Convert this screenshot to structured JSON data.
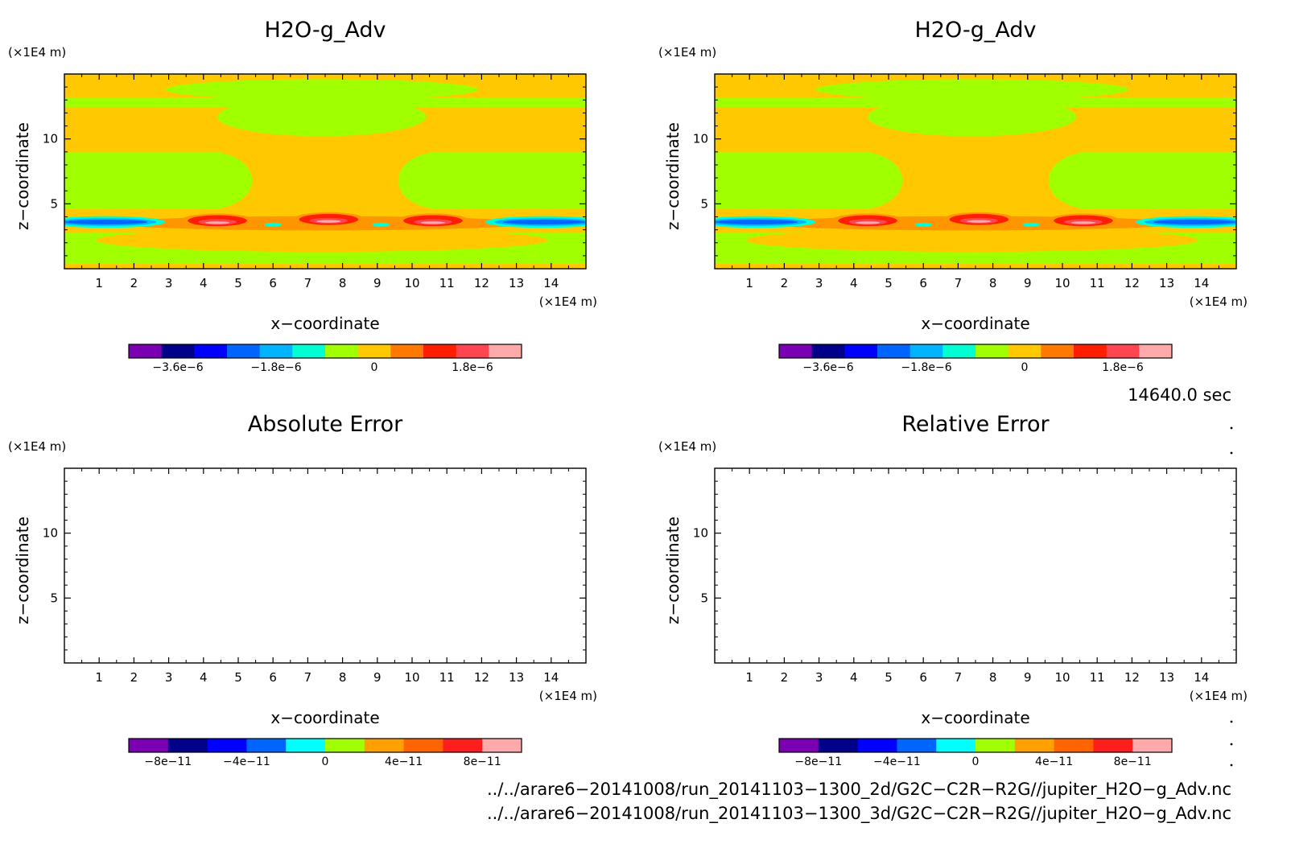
{
  "chart_data": [
    {
      "type": "heatmap",
      "title": "H2O-g_Adv",
      "xlabel": "x−coordinate",
      "ylabel": "z−coordinate",
      "x_unit": "(×1E4 m)",
      "y_unit": "(×1E4 m)",
      "xlim": [
        0,
        15
      ],
      "ylim": [
        0,
        15
      ],
      "x_ticks": [
        "1",
        "2",
        "3",
        "4",
        "5",
        "6",
        "7",
        "8",
        "9",
        "10",
        "11",
        "12",
        "13",
        "14"
      ],
      "y_ticks": [
        "5",
        "10"
      ],
      "colorbar": {
        "colors": [
          "#7b00b4",
          "#00008b",
          "#0000ff",
          "#0064ff",
          "#00b4ff",
          "#00ffd2",
          "#a0ff00",
          "#ffc800",
          "#ff7800",
          "#ff1e00",
          "#ff4650",
          "#ffaaaa"
        ],
        "tick_labels": [
          "−3.6e−6",
          "−1.8e−6",
          "0",
          "1.8e−6"
        ],
        "tick_values": [
          -3.6e-06,
          -1.8e-06,
          0,
          1.8e-06
        ],
        "range": [
          -4.5e-06,
          2.7e-06
        ]
      },
      "field": "filled contours of H2O-g advection tendency"
    },
    {
      "type": "heatmap",
      "title": "H2O-g_Adv",
      "xlabel": "x−coordinate",
      "ylabel": "z−coordinate",
      "x_unit": "(×1E4 m)",
      "y_unit": "(×1E4 m)",
      "xlim": [
        0,
        15
      ],
      "ylim": [
        0,
        15
      ],
      "x_ticks": [
        "1",
        "2",
        "3",
        "4",
        "5",
        "6",
        "7",
        "8",
        "9",
        "10",
        "11",
        "12",
        "13",
        "14"
      ],
      "y_ticks": [
        "5",
        "10"
      ],
      "colorbar": {
        "colors": [
          "#7b00b4",
          "#00008b",
          "#0000ff",
          "#0064ff",
          "#00b4ff",
          "#00ffd2",
          "#a0ff00",
          "#ffc800",
          "#ff7800",
          "#ff1e00",
          "#ff4650",
          "#ffaaaa"
        ],
        "tick_labels": [
          "−3.6e−6",
          "−1.8e−6",
          "0",
          "1.8e−6"
        ],
        "tick_values": [
          -3.6e-06,
          -1.8e-06,
          0,
          1.8e-06
        ],
        "range": [
          -4.5e-06,
          2.7e-06
        ]
      },
      "field": "filled contours of H2O-g advection tendency"
    },
    {
      "type": "heatmap",
      "title": "Absolute Error",
      "xlabel": "x−coordinate",
      "ylabel": "z−coordinate",
      "x_unit": "(×1E4 m)",
      "y_unit": "(×1E4 m)",
      "xlim": [
        0,
        15
      ],
      "ylim": [
        0,
        15
      ],
      "x_ticks": [
        "1",
        "2",
        "3",
        "4",
        "5",
        "6",
        "7",
        "8",
        "9",
        "10",
        "11",
        "12",
        "13",
        "14"
      ],
      "y_ticks": [
        "5",
        "10"
      ],
      "colorbar": {
        "colors": [
          "#7b00b4",
          "#00008b",
          "#0000ff",
          "#0064ff",
          "#00ffff",
          "#a0ff00",
          "#ffa000",
          "#ff6400",
          "#ff1e1e",
          "#ffaaaa"
        ],
        "tick_labels": [
          "−8e−11",
          "−4e−11",
          "0",
          "4e−11",
          "8e−11"
        ],
        "tick_values": [
          -8e-11,
          -4e-11,
          0,
          4e-11,
          8e-11
        ],
        "range": [
          -1e-10,
          1e-10
        ]
      },
      "field": "empty (zero error)"
    },
    {
      "type": "heatmap",
      "title": "Relative Error",
      "xlabel": "x−coordinate",
      "ylabel": "z−coordinate",
      "x_unit": "(×1E4 m)",
      "y_unit": "(×1E4 m)",
      "xlim": [
        0,
        15
      ],
      "ylim": [
        0,
        15
      ],
      "x_ticks": [
        "1",
        "2",
        "3",
        "4",
        "5",
        "6",
        "7",
        "8",
        "9",
        "10",
        "11",
        "12",
        "13",
        "14"
      ],
      "y_ticks": [
        "5",
        "10"
      ],
      "colorbar": {
        "colors": [
          "#7b00b4",
          "#00008b",
          "#0000ff",
          "#0064ff",
          "#00ffff",
          "#a0ff00",
          "#ffa000",
          "#ff6400",
          "#ff1e1e",
          "#ffaaaa"
        ],
        "tick_labels": [
          "−8e−11",
          "−4e−11",
          "0",
          "4e−11",
          "8e−11"
        ],
        "tick_values": [
          -8e-11,
          -4e-11,
          0,
          4e-11,
          8e-11
        ],
        "range": [
          -1e-10,
          1e-10
        ]
      },
      "field": "empty (zero error)"
    }
  ],
  "time_label": "14640.0 sec",
  "file_paths": [
    "../../arare6−20141008/run_20141103−1300_2d/G2C−C2R−R2G//jupiter_H2O−g_Adv.nc",
    "../../arare6−20141008/run_20141103−1300_3d/G2C−C2R−R2G//jupiter_H2O−g_Adv.nc"
  ],
  "field_colors": {
    "orange": "#ffc800",
    "green": "#a0ff00",
    "dark_orange": "#ff9600",
    "red": "#ff1e00",
    "light_red": "#ff4650",
    "pink": "#ffaaaa",
    "cyan": "#00ffd2",
    "light_blue": "#00b4ff",
    "blue": "#0064ff",
    "deep_blue": "#0000ff",
    "navy": "#00008b"
  }
}
